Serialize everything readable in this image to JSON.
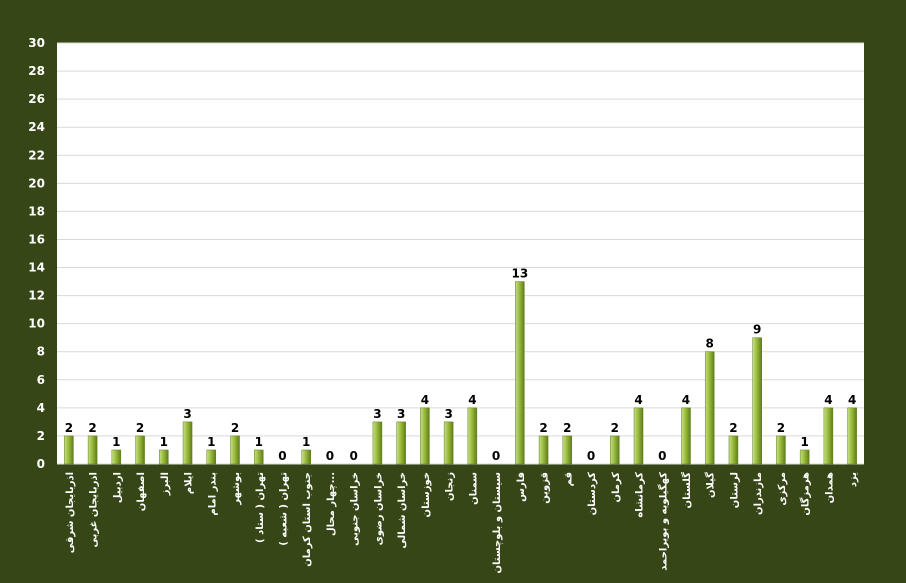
{
  "chart_data": {
    "type": "bar",
    "title": "",
    "xlabel": "",
    "ylabel": "",
    "ylim": [
      0,
      30
    ],
    "ytick_step": 2,
    "grid": true,
    "legend": "none",
    "categories": [
      "اذربایجان شرقی",
      "اذربایجان غربی",
      "اردبیل",
      "اصفهان",
      "البرز",
      "ایلام",
      "بندر امام",
      "بوشهر",
      "تهران ( ستاد )",
      "تهران ( شعبه )",
      "جنوب استان کرمان",
      "چهار محال...",
      "خراسان جنوبی",
      "خراسان رضوی",
      "خراسان شمالی",
      "خوزستان",
      "زنجان",
      "سمنان",
      "سیستان و بلوچستان",
      "فارس",
      "قزوین",
      "قم",
      "کردستان",
      "کرمان",
      "کرمانشاه",
      "کهگیلویه و بویراحمد",
      "گلستان",
      "گیلان",
      "لرستان",
      "مازندران",
      "مرکزی",
      "هرمزگان",
      "همدان",
      "یزد"
    ],
    "values": [
      2,
      2,
      1,
      2,
      1,
      3,
      1,
      2,
      1,
      0,
      1,
      0,
      0,
      3,
      3,
      4,
      3,
      4,
      0,
      13,
      2,
      2,
      0,
      2,
      4,
      0,
      4,
      8,
      2,
      9,
      2,
      1,
      4,
      4
    ],
    "colors": {
      "frame": "#364617",
      "plot": "#ffffff",
      "grid": "#d9d9d9",
      "bar_light": "#c5e08a",
      "bar_mid": "#9bbb3a",
      "bar_dark": "#5f7d1c",
      "ticks": "#ffffff",
      "data_labels": "#000000"
    }
  }
}
